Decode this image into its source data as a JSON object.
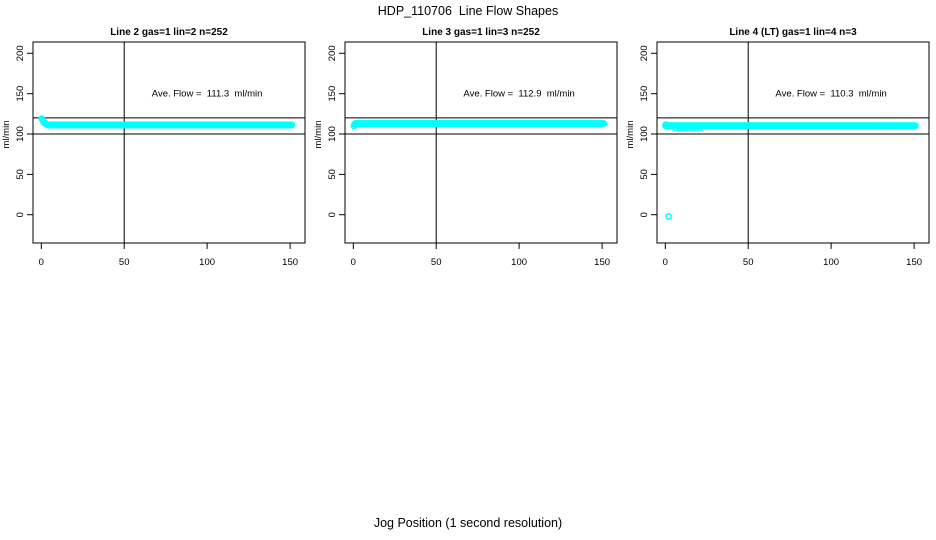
{
  "figure": {
    "title": "HDP_110706  Line Flow Shapes",
    "xlabel": "Jog Position (1 second resolution)",
    "background_color": "#FFFFFF",
    "axis_color": "#000000"
  },
  "chart_data": [
    {
      "type": "scatter",
      "title": "Line 2 gas=1 lin=2 n=252",
      "n": 252,
      "ylabel": "ml/min",
      "ave_flow": 111.3,
      "ave_flow_label": "Ave. Flow =  111.3  ml/min",
      "annotation_xy": [
        100,
        150
      ],
      "x_ticks": [
        0,
        50,
        100,
        150
      ],
      "y_ticks": [
        0,
        50,
        100,
        150,
        200
      ],
      "xlim": [
        -5,
        159
      ],
      "ylim": [
        -35,
        214
      ],
      "grid": false,
      "ref_hlines": [
        100,
        120
      ],
      "ref_vlines": [
        50
      ],
      "marker_color": "#00FFFF",
      "band": {
        "x_start": 4,
        "x_end": 151,
        "y": 111.3
      },
      "lead_in_points": [
        [
          0.3,
          119
        ],
        [
          0.8,
          117.5
        ],
        [
          1.4,
          115.5
        ],
        [
          2.0,
          113.8
        ],
        [
          2.8,
          112.6
        ],
        [
          3.5,
          111.9
        ]
      ],
      "below_band_points": [],
      "outlier_points": []
    },
    {
      "type": "scatter",
      "title": "Line 3 gas=1 lin=3 n=252",
      "n": 252,
      "ylabel": "ml/min",
      "ave_flow": 112.9,
      "ave_flow_label": "Ave. Flow =  112.9  ml/min",
      "annotation_xy": [
        100,
        150
      ],
      "x_ticks": [
        0,
        50,
        100,
        150
      ],
      "y_ticks": [
        0,
        50,
        100,
        150,
        200
      ],
      "xlim": [
        -5,
        159
      ],
      "ylim": [
        -35,
        214
      ],
      "grid": false,
      "ref_hlines": [
        100,
        120
      ],
      "ref_vlines": [
        50
      ],
      "marker_color": "#00FFFF",
      "band": {
        "x_start": 1.4,
        "x_end": 151,
        "y": 112.9
      },
      "lead_in_points": [
        [
          0.4,
          110.2
        ],
        [
          0.9,
          112.0
        ]
      ],
      "below_band_points": [],
      "outlier_points": []
    },
    {
      "type": "scatter",
      "title": "Line 4 (LT) gas=1 lin=4 n=3",
      "n": 3,
      "ylabel": "ml/min",
      "ave_flow": 110.3,
      "ave_flow_label": "Ave. Flow =  110.3  ml/min",
      "annotation_xy": [
        100,
        150
      ],
      "x_ticks": [
        0,
        50,
        100,
        150
      ],
      "y_ticks": [
        0,
        50,
        100,
        150,
        200
      ],
      "xlim": [
        -5,
        159
      ],
      "ylim": [
        -35,
        214
      ],
      "grid": false,
      "ref_hlines": [
        100,
        120
      ],
      "ref_vlines": [
        50
      ],
      "marker_color": "#00FFFF",
      "band": {
        "x_start": 0.2,
        "x_end": 151,
        "y": 110.3
      },
      "lead_in_points": [
        [
          0.3,
          111.5
        ]
      ],
      "below_band_points": [
        [
          6,
          108
        ],
        [
          8.5,
          107.6
        ],
        [
          11,
          108
        ],
        [
          13.5,
          107.7
        ],
        [
          16,
          108
        ],
        [
          18.5,
          107.8
        ],
        [
          21,
          108.1
        ]
      ],
      "outlier_points": [
        [
          2,
          -2
        ]
      ]
    }
  ]
}
